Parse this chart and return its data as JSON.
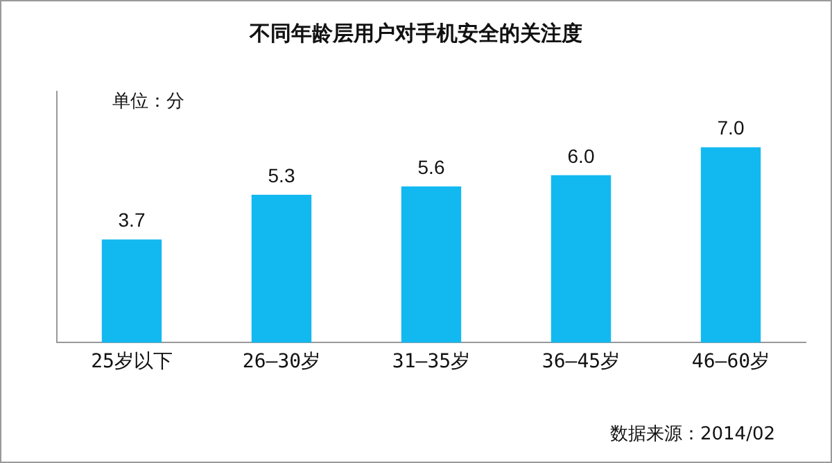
{
  "chart_data": {
    "type": "bar",
    "title": "不同年龄层用户对手机安全的关注度",
    "categories": [
      "25岁以下",
      "26—30岁",
      "31—35岁",
      "36—45岁",
      "46—60岁"
    ],
    "values": [
      3.7,
      5.3,
      5.6,
      6.0,
      7.0
    ],
    "value_labels": [
      "3.7",
      "5.3",
      "5.6",
      "6.0",
      "7.0"
    ],
    "color": "#12b9f0",
    "grid": false,
    "legend": false,
    "annotations": [
      "单位：分",
      "数据来源：2014/02"
    ]
  }
}
